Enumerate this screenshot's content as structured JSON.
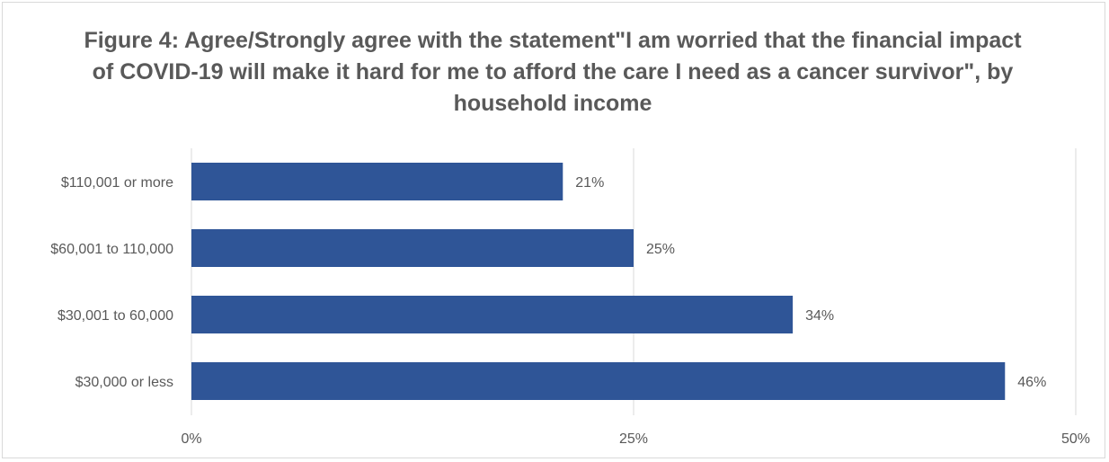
{
  "chart_data": {
    "type": "bar",
    "orientation": "horizontal",
    "title": "Figure 4: Agree/Strongly agree with the statement\"I am worried that the financial impact of COVID-19 will make it hard for me to afford the care I need as a cancer survivor\", by household income",
    "categories": [
      "$110,001 or more",
      "$60,001 to 110,000",
      "$30,001 to 60,000",
      "$30,000 or less"
    ],
    "values": [
      21,
      25,
      34,
      46
    ],
    "data_labels": [
      "21%",
      "25%",
      "34%",
      "46%"
    ],
    "xlim": [
      0,
      50
    ],
    "x_ticks": [
      0,
      25,
      50
    ],
    "x_tick_labels": [
      "0%",
      "25%",
      "50%"
    ],
    "grid": "vertical",
    "legend": "none",
    "bar_color": "#2F5597",
    "grid_color": "#d9d9d9",
    "text_color": "#595959"
  }
}
